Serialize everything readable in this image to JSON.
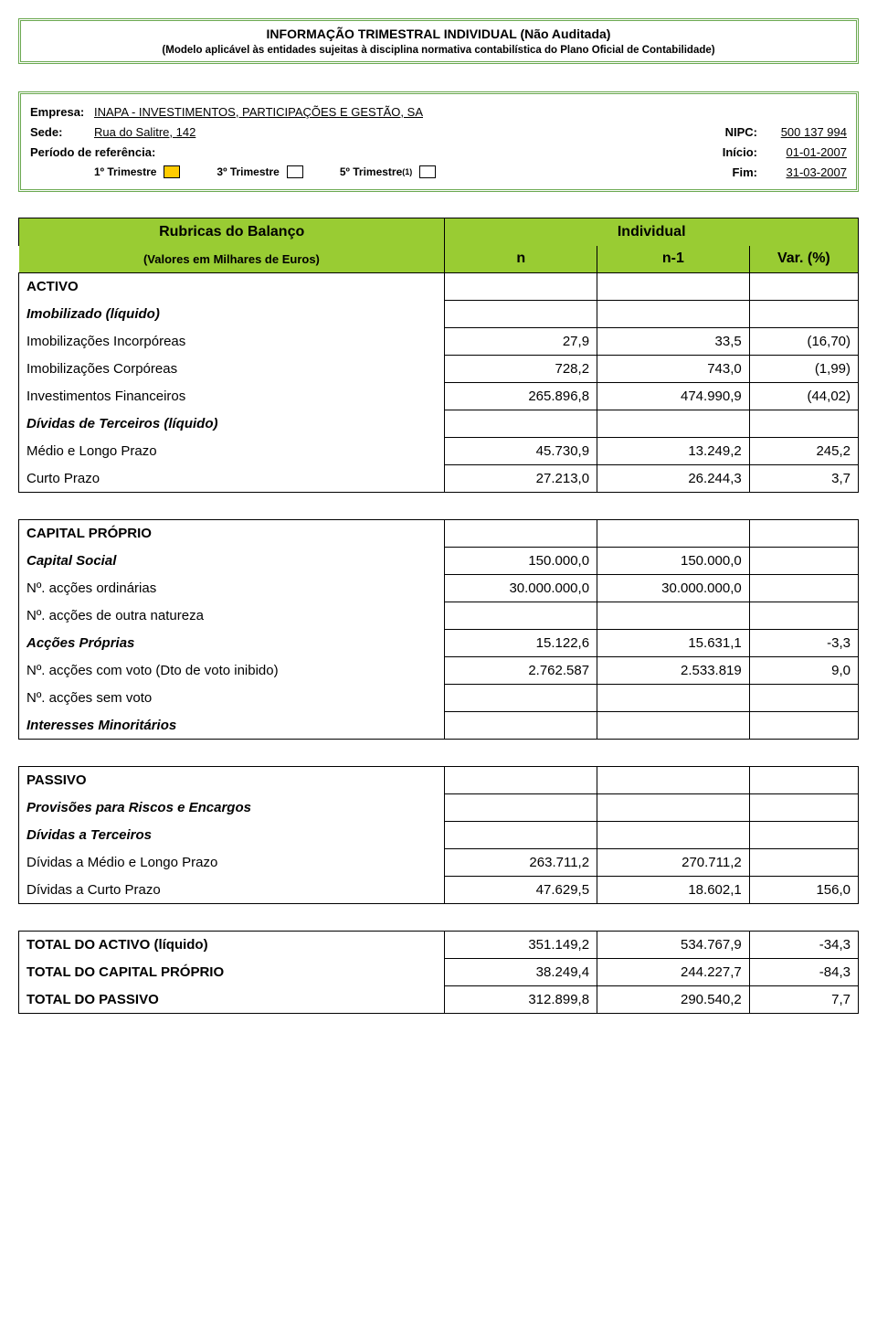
{
  "colors": {
    "header_green": "#99cc33",
    "border_green": "#6aa84f",
    "checkbox_fill": "#ffcc00"
  },
  "header": {
    "title": "INFORMAÇÃO TRIMESTRAL INDIVIDUAL (Não Auditada)",
    "subtitle": "(Modelo aplicável às entidades sujeitas à disciplina normativa contabilística do Plano Oficial de Contabilidade)"
  },
  "info": {
    "empresa_label": "Empresa:",
    "empresa_value": "INAPA - INVESTIMENTOS, PARTICIPAÇÕES E GESTÃO, SA",
    "sede_label": "Sede:",
    "sede_value": "Rua do Salitre, 142",
    "nipc_label": "NIPC:",
    "nipc_value": "500 137 994",
    "periodo_label": "Período de referência:",
    "inicio_label": "Início:",
    "inicio_value": "01-01-2007",
    "t1": "1º Trimestre",
    "t3": "3º Trimestre",
    "t5": "5º Trimestre",
    "t5_sup": "(1)",
    "fim_label": "Fim:",
    "fim_value": "31-03-2007"
  },
  "table": {
    "header": {
      "left_top": "Rubricas do Balanço",
      "right_top": "Individual",
      "left_sub": "(Valores em Milhares de Euros)",
      "col_n": "n",
      "col_n1": "n-1",
      "col_var": "Var. (%)"
    },
    "rows": [
      {
        "label": "ACTIVO",
        "style": "section-bold",
        "n": "",
        "n1": "",
        "var": "",
        "boxed": true
      },
      {
        "label": "Imobilizado (líquido)",
        "style": "section-italic",
        "n": "",
        "n1": "",
        "var": "",
        "boxed": true
      },
      {
        "label": "Imobilizações Incorpóreas",
        "style": "",
        "n": "27,9",
        "n1": "33,5",
        "var": "(16,70)",
        "boxed": true
      },
      {
        "label": "Imobilizações Corpóreas",
        "style": "",
        "n": "728,2",
        "n1": "743,0",
        "var": "(1,99)",
        "boxed": true
      },
      {
        "label": "Investimentos Financeiros",
        "style": "",
        "n": "265.896,8",
        "n1": "474.990,9",
        "var": "(44,02)",
        "boxed": true
      },
      {
        "label": "Dívidas de Terceiros (líquido)",
        "style": "section-italic",
        "n": "",
        "n1": "",
        "var": "",
        "boxed": true
      },
      {
        "label": "Médio e Longo Prazo",
        "style": "",
        "n": "45.730,9",
        "n1": "13.249,2",
        "var": "245,2",
        "boxed": true
      },
      {
        "label": "Curto Prazo",
        "style": "",
        "n": "27.213,0",
        "n1": "26.244,3",
        "var": "3,7",
        "boxed": true,
        "last": true
      },
      {
        "gap": true
      },
      {
        "label": "CAPITAL PRÓPRIO",
        "style": "section-bold",
        "n": "",
        "n1": "",
        "var": "",
        "boxed": true,
        "top": true
      },
      {
        "label": "Capital Social",
        "style": "section-italic",
        "n": "150.000,0",
        "n1": "150.000,0",
        "var": "",
        "boxed": true
      },
      {
        "label": "Nº. acções ordinárias",
        "style": "",
        "n": "30.000.000,0",
        "n1": "30.000.000,0",
        "var": "",
        "boxed": true
      },
      {
        "label": "Nº. acções de outra natureza",
        "style": "",
        "n": "",
        "n1": "",
        "var": "",
        "boxed": true
      },
      {
        "label": "Acções Próprias",
        "style": "section-italic",
        "n": "15.122,6",
        "n1": "15.631,1",
        "var": "-3,3",
        "boxed": true
      },
      {
        "label": "Nº. acções com voto (Dto de voto inibido)",
        "style": "",
        "n": "2.762.587",
        "n1": "2.533.819",
        "var": "9,0",
        "boxed": true
      },
      {
        "label": "Nº. acções sem voto",
        "style": "",
        "n": "",
        "n1": "",
        "var": "",
        "boxed": true
      },
      {
        "label": "Interesses Minoritários",
        "style": "section-italic",
        "n": "",
        "n1": "",
        "var": "",
        "boxed": true,
        "last": true
      },
      {
        "gap": true
      },
      {
        "label": "PASSIVO",
        "style": "section-bold",
        "n": "",
        "n1": "",
        "var": "",
        "boxed": true,
        "top": true
      },
      {
        "label": "Provisões para Riscos e Encargos",
        "style": "section-italic",
        "n": "",
        "n1": "",
        "var": "",
        "boxed": true
      },
      {
        "label": "Dívidas a Terceiros",
        "style": "section-italic",
        "n": "",
        "n1": "",
        "var": "",
        "boxed": true
      },
      {
        "label": "Dívidas a Médio e Longo Prazo",
        "style": "",
        "n": "263.711,2",
        "n1": "270.711,2",
        "var": "",
        "boxed": true
      },
      {
        "label": "Dívidas a Curto Prazo",
        "style": "",
        "n": "47.629,5",
        "n1": "18.602,1",
        "var": "156,0",
        "boxed": true,
        "last": true
      },
      {
        "gap": true
      },
      {
        "label": "TOTAL DO ACTIVO (líquido)",
        "style": "section-bold",
        "n": "351.149,2",
        "n1": "534.767,9",
        "var": "-34,3",
        "boxed": true,
        "top": true
      },
      {
        "label": "TOTAL DO CAPITAL PRÓPRIO",
        "style": "section-bold",
        "n": "38.249,4",
        "n1": "244.227,7",
        "var": "-84,3",
        "boxed": true
      },
      {
        "label": "TOTAL DO PASSIVO",
        "style": "section-bold",
        "n": "312.899,8",
        "n1": "290.540,2",
        "var": "7,7",
        "boxed": true,
        "last": true
      }
    ]
  }
}
